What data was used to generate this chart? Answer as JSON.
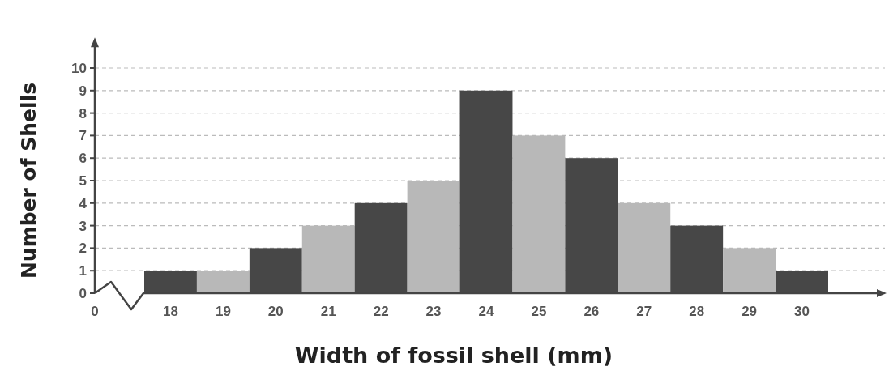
{
  "chart_data": {
    "type": "bar",
    "xlabel": "Width of fossil shell (mm)",
    "ylabel": "Number of Shells",
    "categories": [
      "18",
      "19",
      "20",
      "21",
      "22",
      "23",
      "24",
      "25",
      "26",
      "27",
      "28",
      "29",
      "30"
    ],
    "values": [
      1,
      1,
      2,
      3,
      4,
      5,
      9,
      7,
      6,
      4,
      3,
      2,
      1
    ],
    "colors": [
      "#474747",
      "#b8b8b8",
      "#474747",
      "#b8b8b8",
      "#474747",
      "#b8b8b8",
      "#474747",
      "#b8b8b8",
      "#474747",
      "#b8b8b8",
      "#474747",
      "#b8b8b8",
      "#474747"
    ],
    "ylim": [
      0,
      11
    ],
    "yticks": [
      0,
      1,
      2,
      3,
      4,
      5,
      6,
      7,
      8,
      9,
      10
    ],
    "grid": "y",
    "annotations": [
      "0"
    ]
  }
}
